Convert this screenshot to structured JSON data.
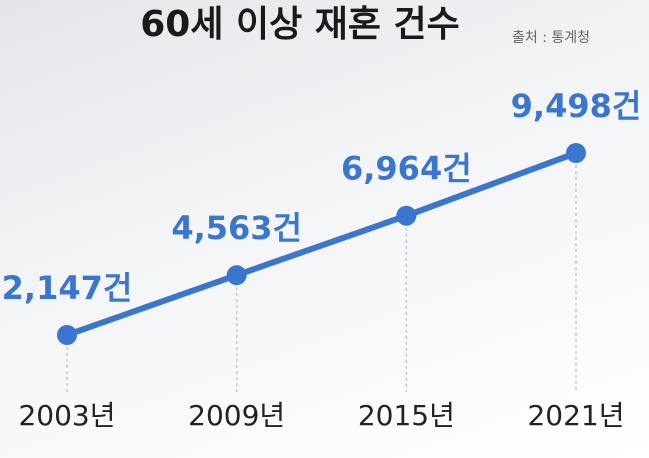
{
  "chart_data": {
    "type": "line",
    "title": "60세 이상 재혼 건수",
    "source": "출처 : 통계청",
    "categories": [
      "2003년",
      "2009년",
      "2015년",
      "2021년"
    ],
    "values": [
      2147,
      4563,
      6964,
      9498
    ],
    "value_labels": [
      "2,147건",
      "4,563건",
      "6,964건",
      "9,498건"
    ],
    "color": "#3a76d0"
  }
}
